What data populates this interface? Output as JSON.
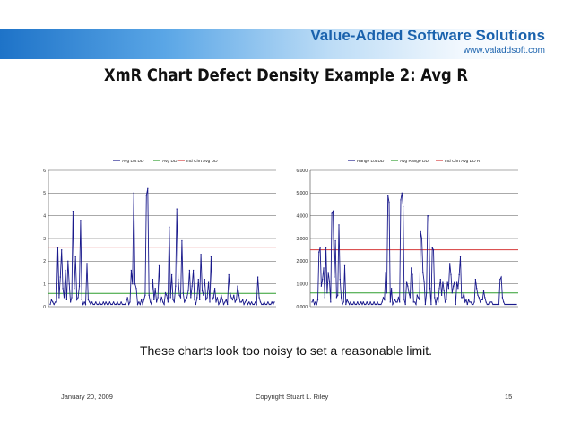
{
  "header": {
    "brand": "Value-Added Software Solutions",
    "url": "www.valaddsoft.com"
  },
  "slide": {
    "title": "XmR Chart Defect Density Example 2:  Avg R",
    "caption": "These charts look too noisy to set a reasonable limit."
  },
  "footer": {
    "date": "January 20, 2009",
    "copyright": "Copyright    Stuart L. Riley",
    "page": "15"
  },
  "colors": {
    "series": "#1a1a8c",
    "avg": "#2e9e2e",
    "limit": "#d63a3a",
    "brand": "#1a62ad"
  },
  "chart_data": [
    {
      "type": "line",
      "legend": [
        "Avg Lot DD",
        "Avg DD",
        "Ind Chrt Avg DD"
      ],
      "legend_placement": "top",
      "ylim": [
        0,
        6
      ],
      "yticks": [
        "0",
        "1",
        "2",
        "3",
        "4",
        "5",
        "6"
      ],
      "grid": true,
      "series": [
        {
          "name": "Avg Lot DD",
          "values": [
            0.1,
            0.3,
            0.2,
            0.1,
            0.2,
            0.2,
            2.6,
            0.4,
            1.3,
            2.5,
            0.8,
            0.4,
            1.6,
            0.3,
            2.0,
            1.0,
            0.2,
            0.4,
            4.2,
            0.8,
            2.2,
            0.3,
            0.4,
            0.9,
            3.8,
            0.3,
            0.1,
            0.2,
            0.1,
            1.9,
            0.3,
            0.2,
            0.1,
            0.2,
            0.1,
            0.1,
            0.2,
            0.1,
            0.1,
            0.2,
            0.1,
            0.1,
            0.2,
            0.1,
            0.2,
            0.1,
            0.1,
            0.2,
            0.1,
            0.1,
            0.2,
            0.1,
            0.1,
            0.2,
            0.1,
            0.1,
            0.2,
            0.1,
            0.1,
            0.1,
            0.2,
            0.4,
            0.1,
            0.2,
            1.6,
            1.0,
            5.0,
            1.0,
            0.8,
            0.1,
            0.2,
            0.1,
            0.3,
            0.1,
            0.3,
            0.5,
            4.9,
            5.2,
            0.5,
            0.2,
            0.1,
            1.2,
            0.3,
            0.8,
            0.2,
            0.4,
            1.8,
            0.2,
            0.4,
            0.2,
            0.1,
            0.6,
            0.5,
            0.2,
            3.5,
            0.4,
            1.4,
            0.3,
            0.2,
            0.9,
            4.3,
            1.2,
            0.5,
            0.4,
            2.9,
            0.6,
            0.2,
            0.3,
            0.4,
            0.7,
            1.6,
            0.4,
            0.9,
            1.6,
            0.3,
            0.1,
            0.4,
            1.2,
            0.3,
            2.3,
            0.7,
            0.5,
            1.2,
            0.3,
            0.4,
            1.1,
            0.2,
            2.2,
            0.3,
            0.4,
            0.8,
            0.2,
            0.4,
            0.1,
            0.2,
            0.5,
            0.3,
            0.1,
            0.2,
            0.3,
            0.1,
            1.4,
            0.6,
            0.4,
            0.3,
            0.5,
            0.2,
            0.3,
            0.9,
            0.5,
            0.2,
            0.2,
            0.3,
            0.1,
            0.2,
            0.3,
            0.1,
            0.2,
            0.1,
            0.2,
            0.1,
            0.1,
            0.2,
            0.1,
            1.3,
            0.4,
            0.2,
            0.1,
            0.1,
            0.2,
            0.1,
            0.1,
            0.2,
            0.1,
            0.1,
            0.2,
            0.1,
            0.2
          ]
        },
        {
          "name": "Avg DD",
          "value": 0.58
        },
        {
          "name": "Ind Chrt Avg DD",
          "value": 2.62
        }
      ]
    },
    {
      "type": "line",
      "legend": [
        "Range Lot DD",
        "Avg Range DD",
        "Ind Chrt Avg DD R"
      ],
      "legend_placement": "top",
      "ylim": [
        0,
        6
      ],
      "yticks": [
        "0.000",
        "1.000",
        "2.000",
        "3.000",
        "4.000",
        "5.000",
        "6.000"
      ],
      "grid": true,
      "series": [
        {
          "name": "Range Lot DD",
          "values": [
            0.2,
            0.3,
            0.1,
            0.2,
            0.1,
            0.3,
            2.4,
            2.6,
            0.9,
            1.2,
            1.7,
            0.4,
            2.6,
            0.6,
            1.5,
            1.1,
            0.2,
            4.1,
            4.2,
            1.3,
            2.9,
            0.4,
            0.5,
            3.6,
            1.2,
            0.4,
            0.1,
            0.2,
            1.8,
            0.1,
            0.3,
            0.2,
            0.1,
            0.2,
            0.1,
            0.1,
            0.2,
            0.1,
            0.1,
            0.2,
            0.1,
            0.1,
            0.2,
            0.1,
            0.2,
            0.1,
            0.1,
            0.2,
            0.1,
            0.1,
            0.2,
            0.1,
            0.1,
            0.2,
            0.1,
            0.1,
            0.2,
            0.1,
            0.1,
            0.1,
            0.2,
            0.4,
            0.3,
            1.5,
            0.6,
            4.9,
            4.6,
            0.2,
            0.8,
            0.1,
            0.2,
            0.3,
            0.2,
            0.2,
            0.4,
            0.2,
            4.7,
            5.0,
            4.4,
            0.3,
            0.1,
            1.1,
            0.9,
            0.6,
            0.4,
            1.7,
            1.4,
            0.2,
            0.2,
            0.1,
            0.5,
            0.4,
            0.3,
            3.3,
            3.0,
            1.5,
            1.1,
            0.1,
            0.6,
            4.0,
            4.0,
            0.8,
            0.1,
            2.6,
            2.5,
            0.4,
            0.1,
            0.4,
            0.2,
            0.8,
            1.2,
            0.5,
            1.1,
            0.7,
            0.2,
            0.3,
            1.1,
            0.8,
            1.9,
            1.4,
            0.6,
            0.9,
            1.1,
            0.1,
            1.1,
            0.8,
            1.4,
            2.2,
            0.4,
            0.4,
            0.6,
            0.2,
            0.3,
            0.1,
            0.3,
            0.2,
            0.2,
            0.1,
            0.1,
            0.2,
            1.2,
            0.8,
            0.5,
            0.4,
            0.2,
            0.3,
            0.3,
            0.7,
            0.4,
            0.2,
            0.1,
            0.1,
            0.2,
            0.2,
            0.2,
            0.1,
            0.1,
            0.1,
            0.1,
            0.1,
            0.1,
            1.2,
            1.3,
            0.4,
            0.2,
            0.1,
            0.1,
            0.1,
            0.1,
            0.1,
            0.1,
            0.1,
            0.1,
            0.1,
            0.1,
            0.1
          ]
        },
        {
          "name": "Avg Range DD",
          "value": 0.6
        },
        {
          "name": "Ind Chrt Avg DD R",
          "value": 2.5
        }
      ]
    }
  ]
}
